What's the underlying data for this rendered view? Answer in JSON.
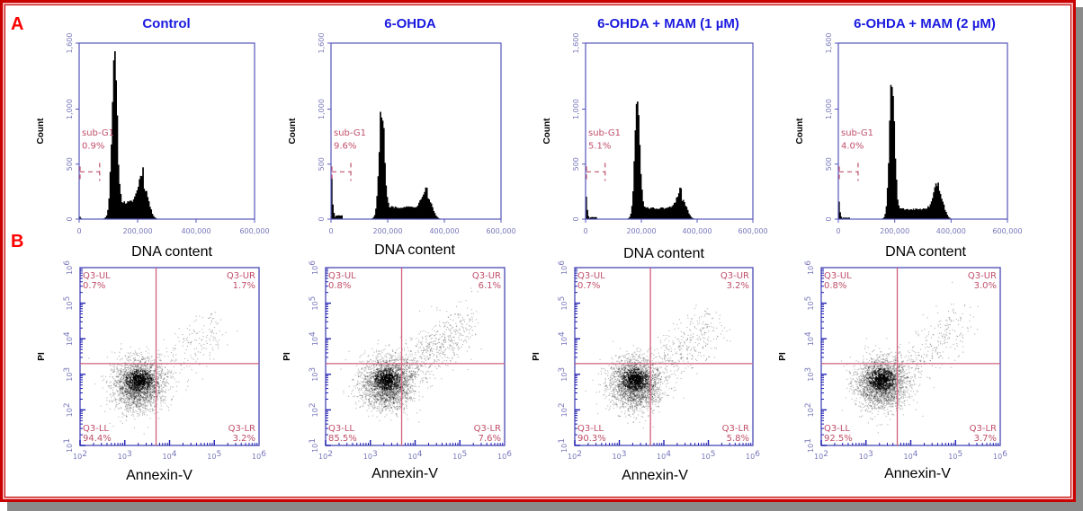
{
  "figure": {
    "panel_labels": [
      "A",
      "B"
    ],
    "conditions": [
      "Control",
      "6-OHDA",
      "6-OHDA + MAM (1 µM)",
      "6-OHDA + MAM (2 µM)"
    ],
    "colors": {
      "frame": "#c80000",
      "panel_letter": "#ff0000",
      "title": "#1a1adf",
      "axis": "#5555bb",
      "gate": "#c0506a",
      "quadrant_line": "#d0607a",
      "histogram_fill": "#000000"
    }
  },
  "chart_data": [
    {
      "type": "histogram",
      "panel": "A",
      "title": "Control",
      "xlabel": "DNA content",
      "ylabel": "Count",
      "xlim": [
        0,
        600000
      ],
      "ylim": [
        0,
        1600
      ],
      "x_ticks": [
        "0",
        "200,000",
        "400,000",
        "600,000"
      ],
      "y_ticks": [
        "0",
        "500",
        "1,000",
        "1,600"
      ],
      "gate": {
        "name": "sub-G1",
        "value": "0.9%"
      },
      "peaks": {
        "subG1_height": 40,
        "G1_position": 120000,
        "G1_height": 1320,
        "S_height": 150,
        "G2_position": 220000,
        "G2_height": 300,
        "G2_end": 280000
      }
    },
    {
      "type": "histogram",
      "panel": "A",
      "title": "6-OHDA",
      "xlabel": "DNA content",
      "ylabel": "Count",
      "xlim": [
        0,
        600000
      ],
      "ylim": [
        0,
        1600
      ],
      "x_ticks": [
        "0",
        "200,000",
        "400,000",
        "600,000"
      ],
      "y_ticks": [
        "0",
        "500",
        "1,000",
        "1,600"
      ],
      "gate": {
        "name": "sub-G1",
        "value": "9.6%"
      },
      "peaks": {
        "subG1_height": 650,
        "G1_position": 178000,
        "G1_height": 960,
        "S_height": 110,
        "G2_position": 340000,
        "G2_height": 200,
        "G2_end": 395000
      }
    },
    {
      "type": "histogram",
      "panel": "A",
      "title": "6-OHDA + MAM (1 µM)",
      "xlabel": "DNA content",
      "ylabel": "Count",
      "xlim": [
        0,
        600000
      ],
      "ylim": [
        0,
        1600
      ],
      "x_ticks": [
        "0",
        "200,000",
        "400,000",
        "600,000"
      ],
      "y_ticks": [
        "0",
        "500",
        "1,000",
        "1,600"
      ],
      "gate": {
        "name": "sub-G1",
        "value": "5.1%"
      },
      "peaks": {
        "subG1_height": 350,
        "G1_position": 185000,
        "G1_height": 980,
        "S_height": 100,
        "G2_position": 345000,
        "G2_height": 180,
        "G2_end": 400000
      }
    },
    {
      "type": "histogram",
      "panel": "A",
      "title": "6-OHDA + MAM (2 µM)",
      "xlabel": "DNA content",
      "ylabel": "Count",
      "xlim": [
        0,
        600000
      ],
      "ylim": [
        0,
        1600
      ],
      "x_ticks": [
        "0",
        "200,000",
        "400,000",
        "600,000"
      ],
      "y_ticks": [
        "0",
        "500",
        "1,000",
        "1,600"
      ],
      "gate": {
        "name": "sub-G1",
        "value": "4.0%"
      },
      "peaks": {
        "subG1_height": 270,
        "G1_position": 190000,
        "G1_height": 1200,
        "S_height": 90,
        "G2_position": 355000,
        "G2_height": 250,
        "G2_end": 410000
      }
    },
    {
      "type": "scatter",
      "panel": "B",
      "title": "Control",
      "xlabel": "Annexin-V",
      "ylabel": "PI",
      "xscale": "log",
      "yscale": "log",
      "xlim": [
        100,
        1000000
      ],
      "ylim": [
        10,
        1000000
      ],
      "x_ticks": [
        "10^2",
        "10^3",
        "10^4",
        "10^5",
        "10^6"
      ],
      "y_ticks": [
        "10^1",
        "10^2",
        "10^3",
        "10^4",
        "10^5",
        "10^6"
      ],
      "quadrants": {
        "UL": {
          "label": "Q3-UL",
          "value": "0.7%"
        },
        "UR": {
          "label": "Q3-UR",
          "value": "1.7%"
        },
        "LL": {
          "label": "Q3-LL",
          "value": "94.4%"
        },
        "LR": {
          "label": "Q3-LR",
          "value": "3.2%"
        }
      },
      "gate_x": 5000,
      "gate_y": 2000,
      "cluster_center": [
        2000,
        700
      ]
    },
    {
      "type": "scatter",
      "panel": "B",
      "title": "6-OHDA",
      "xlabel": "Annexin-V",
      "ylabel": "PI",
      "xscale": "log",
      "yscale": "log",
      "xlim": [
        100,
        1000000
      ],
      "ylim": [
        10,
        1000000
      ],
      "x_ticks": [
        "10^2",
        "10^3",
        "10^4",
        "10^5",
        "10^6"
      ],
      "y_ticks": [
        "10^1",
        "10^2",
        "10^3",
        "10^4",
        "10^5",
        "10^6"
      ],
      "quadrants": {
        "UL": {
          "label": "Q3-UL",
          "value": "0.8%"
        },
        "UR": {
          "label": "Q3-UR",
          "value": "6.1%"
        },
        "LL": {
          "label": "Q3-LL",
          "value": "85.5%"
        },
        "LR": {
          "label": "Q3-LR",
          "value": "7.6%"
        }
      },
      "gate_x": 5000,
      "gate_y": 2000,
      "cluster_center": [
        2300,
        750
      ]
    },
    {
      "type": "scatter",
      "panel": "B",
      "title": "6-OHDA + MAM (1 µM)",
      "xlabel": "Annexin-V",
      "ylabel": "PI",
      "xscale": "log",
      "yscale": "log",
      "xlim": [
        100,
        1000000
      ],
      "ylim": [
        10,
        1000000
      ],
      "x_ticks": [
        "10^2",
        "10^3",
        "10^4",
        "10^5",
        "10^6"
      ],
      "y_ticks": [
        "10^1",
        "10^2",
        "10^3",
        "10^4",
        "10^5",
        "10^6"
      ],
      "quadrants": {
        "UL": {
          "label": "Q3-UL",
          "value": "0.7%"
        },
        "UR": {
          "label": "Q3-UR",
          "value": "3.2%"
        },
        "LL": {
          "label": "Q3-LL",
          "value": "90.3%"
        },
        "LR": {
          "label": "Q3-LR",
          "value": "5.8%"
        }
      },
      "gate_x": 5000,
      "gate_y": 2000,
      "cluster_center": [
        2200,
        750
      ]
    },
    {
      "type": "scatter",
      "panel": "B",
      "title": "6-OHDA + MAM (2 µM)",
      "xlabel": "Annexin-V",
      "ylabel": "PI",
      "xscale": "log",
      "yscale": "log",
      "xlim": [
        100,
        1000000
      ],
      "ylim": [
        10,
        1000000
      ],
      "x_ticks": [
        "10^2",
        "10^3",
        "10^4",
        "10^5",
        "10^6"
      ],
      "y_ticks": [
        "10^1",
        "10^2",
        "10^3",
        "10^4",
        "10^5",
        "10^6"
      ],
      "quadrants": {
        "UL": {
          "label": "Q3-UL",
          "value": "0.8%"
        },
        "UR": {
          "label": "Q3-UR",
          "value": "3.0%"
        },
        "LL": {
          "label": "Q3-LL",
          "value": "92.5%"
        },
        "LR": {
          "label": "Q3-LR",
          "value": "3.7%"
        }
      },
      "gate_x": 5000,
      "gate_y": 2000,
      "cluster_center": [
        2200,
        750
      ]
    }
  ]
}
